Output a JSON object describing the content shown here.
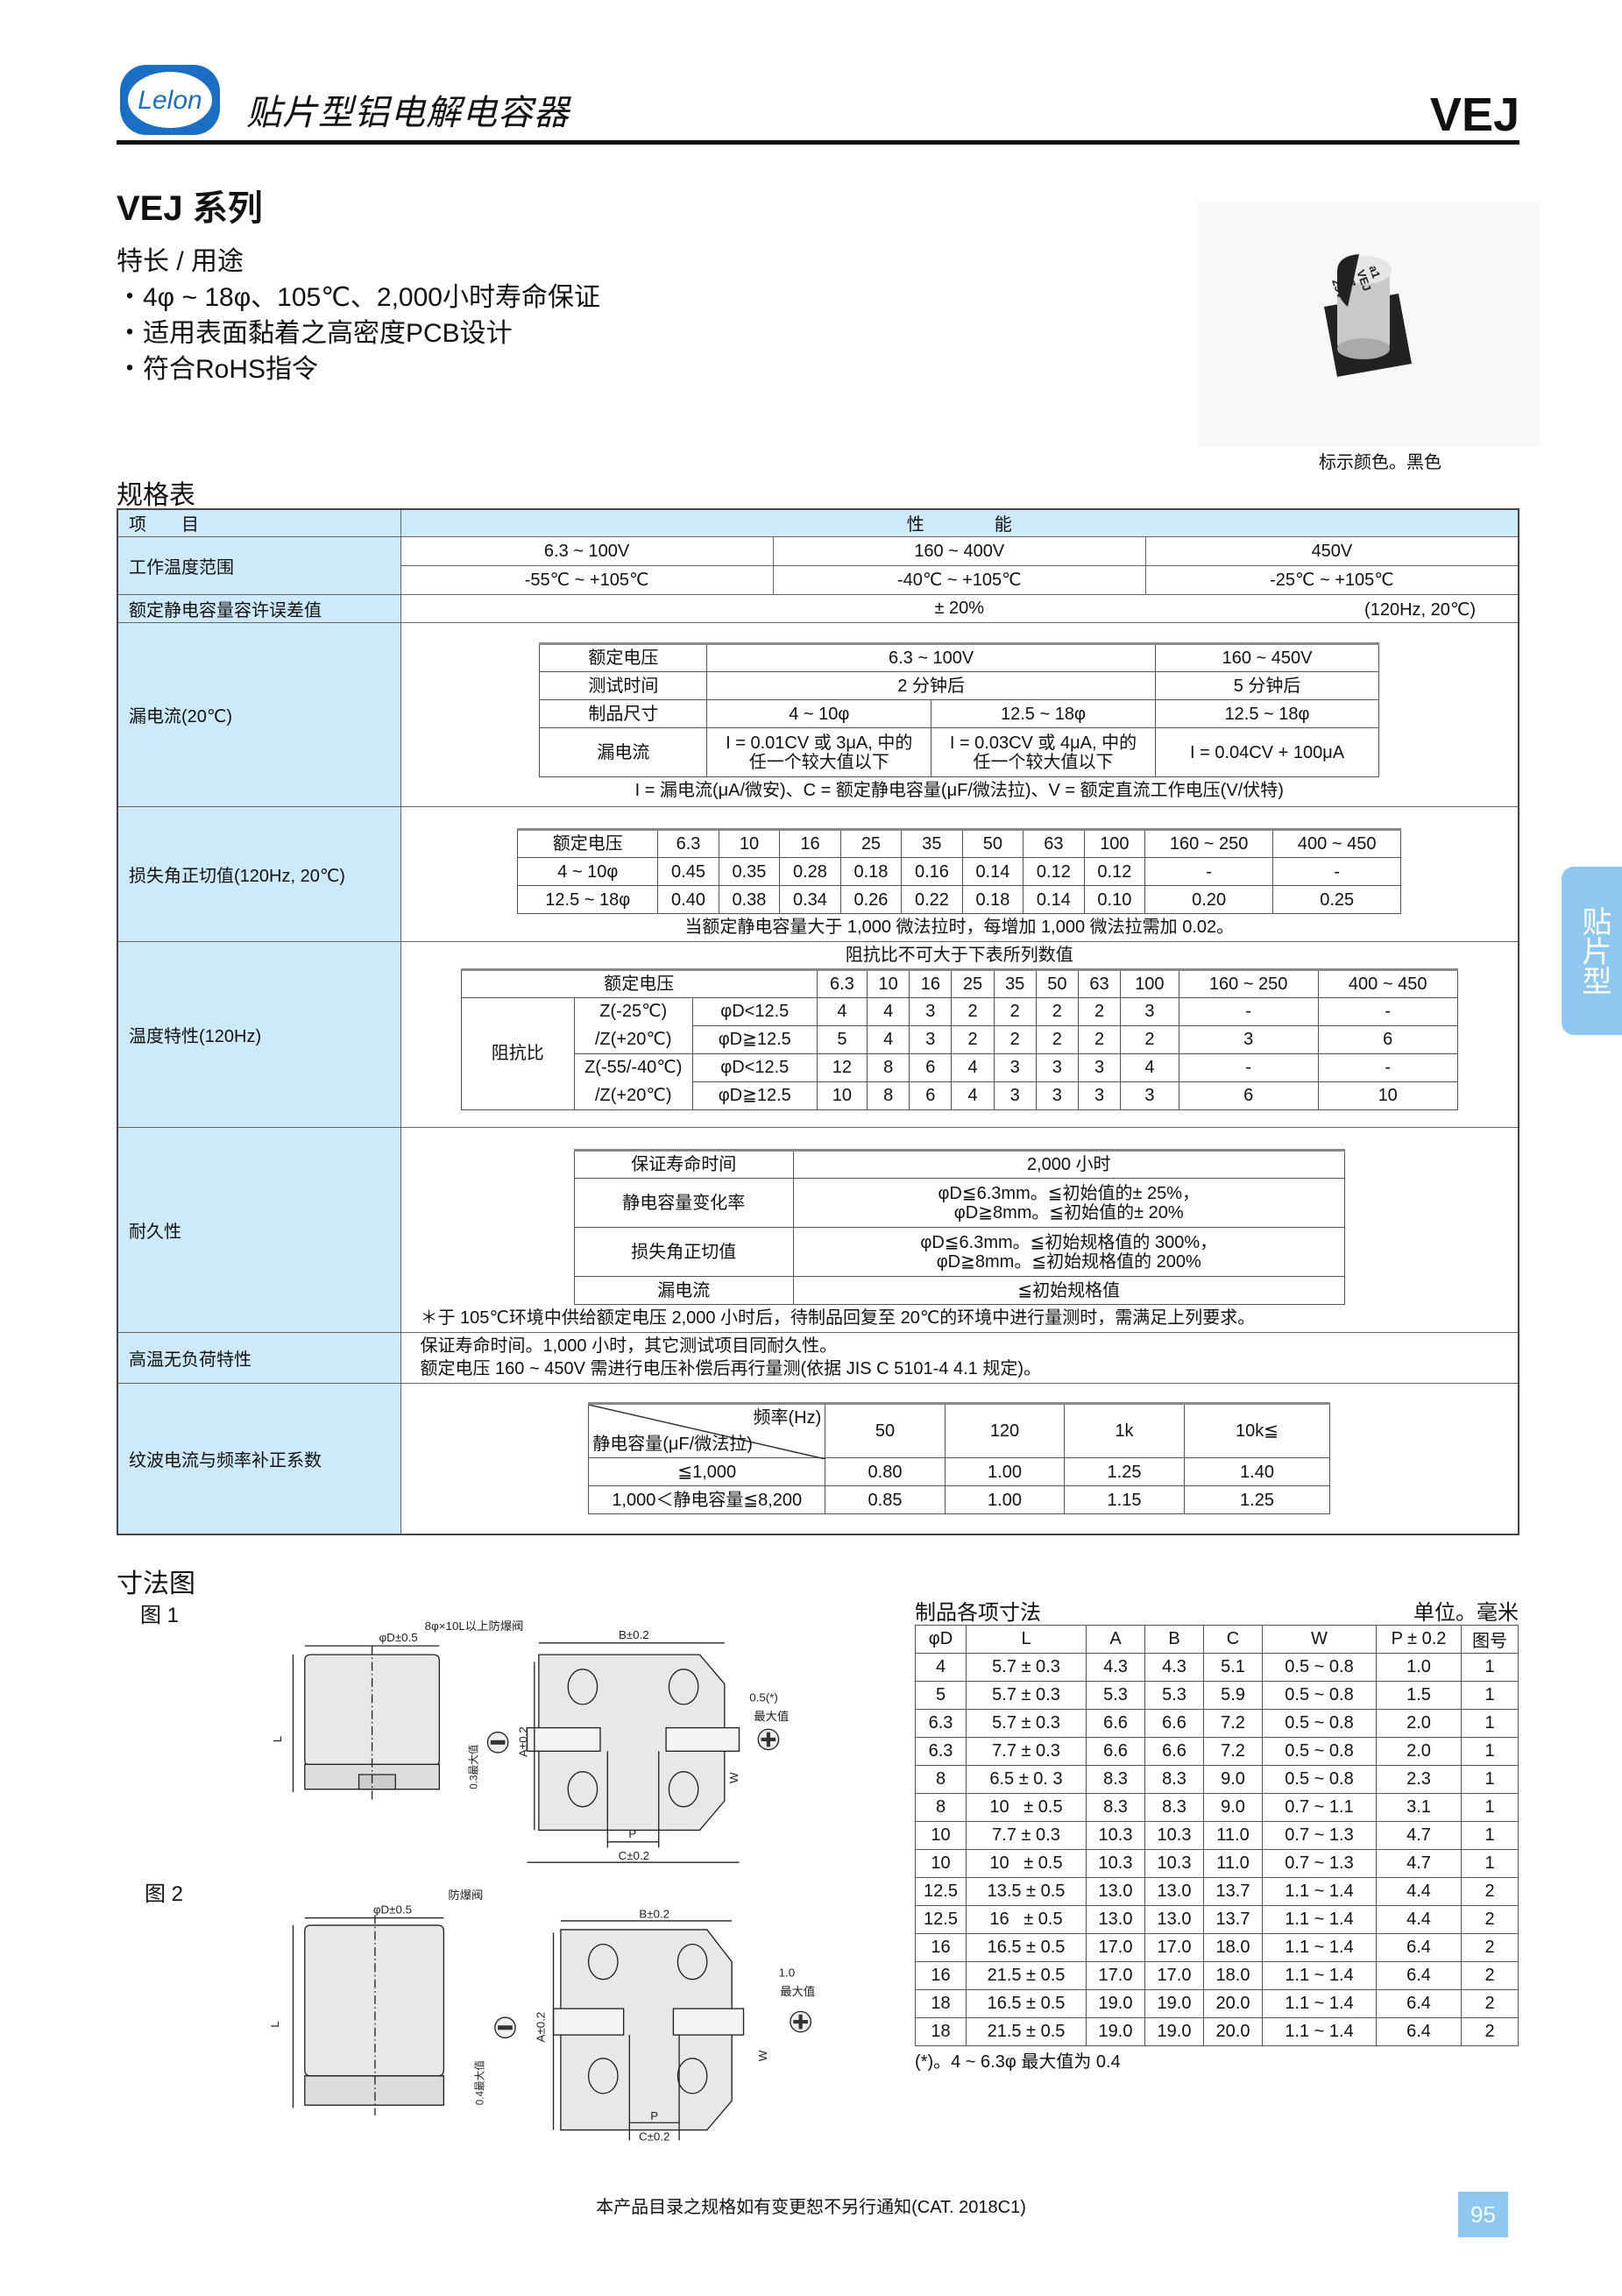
{
  "header": {
    "logo_text": "Lelon",
    "title": "贴片型铝电解电容器",
    "series_code": "VEJ"
  },
  "series_title": "VEJ 系列",
  "features": {
    "heading": "特长 / 用途",
    "items": [
      "・4φ ~ 18φ、105℃、2,000小时寿命保证",
      "・适用表面黏着之高密度PCB设计",
      "・符合RoHS指令"
    ]
  },
  "product_image": {
    "marking": [
      "a1",
      "VEJ",
      "47",
      "25V"
    ],
    "caption": "标示颜色。黑色"
  },
  "spec": {
    "heading": "规格表",
    "col_item": "项　　目",
    "col_perf": "性　　　　能",
    "op_temp": {
      "label": "工作温度范围",
      "voltages": [
        "6.3 ~ 100V",
        "160 ~ 400V",
        "450V"
      ],
      "temps": [
        "-55℃ ~ +105℃",
        "-40℃ ~ +105℃",
        "-25℃ ~ +105℃"
      ]
    },
    "tolerance": {
      "label": "额定静电容量容许误差值",
      "value": "± 20%",
      "cond": "(120Hz, 20℃)"
    },
    "leakage": {
      "label": "漏电流(20℃)",
      "rated_v": "额定电压",
      "v1": "6.3 ~ 100V",
      "v2": "160 ~ 450V",
      "test_time": "测试时间",
      "t1": "2 分钟后",
      "t2": "5 分钟后",
      "size": "制品尺寸",
      "s1": "4 ~ 10φ",
      "s2": "12.5 ~ 18φ",
      "s3": "12.5 ~ 18φ",
      "current": "漏电流",
      "c1a": "I = 0.01CV 或 3μA, 中的",
      "c1b": "任一个较大值以下",
      "c2a": "I = 0.03CV 或 4μA, 中的",
      "c2b": "任一个较大值以下",
      "c3": "I = 0.04CV + 100μA",
      "note": "I = 漏电流(μA/微安)、C = 额定静电容量(μF/微法拉)、V = 额定直流工作电压(V/伏特)"
    },
    "df": {
      "label": "损失角正切值(120Hz, 20℃)",
      "header": [
        "额定电压",
        "6.3",
        "10",
        "16",
        "25",
        "35",
        "50",
        "63",
        "100",
        "160 ~ 250",
        "400 ~ 450"
      ],
      "rows": [
        [
          "4 ~ 10φ",
          "0.45",
          "0.35",
          "0.28",
          "0.18",
          "0.16",
          "0.14",
          "0.12",
          "0.12",
          "-",
          "-"
        ],
        [
          "12.5 ~ 18φ",
          "0.40",
          "0.38",
          "0.34",
          "0.26",
          "0.22",
          "0.18",
          "0.14",
          "0.10",
          "0.20",
          "0.25"
        ]
      ],
      "note": "当额定静电容量大于 1,000 微法拉时，每增加 1,000 微法拉需加 0.02。"
    },
    "temp_char": {
      "label": "温度特性(120Hz)",
      "title": "阻抗比不可大于下表所列数值",
      "rated_v": "额定电压",
      "voltages": [
        "6.3",
        "10",
        "16",
        "25",
        "35",
        "50",
        "63",
        "100",
        "160 ~ 250",
        "400 ~ 450"
      ],
      "ratio_label": "阻抗比",
      "rows": [
        {
          "z": "Z(-25℃)",
          "d": "φD<12.5",
          "values": [
            "4",
            "4",
            "3",
            "2",
            "2",
            "2",
            "2",
            "3",
            "-",
            "-"
          ]
        },
        {
          "z": "/Z(+20℃)",
          "d": "φD≧12.5",
          "values": [
            "5",
            "4",
            "3",
            "2",
            "2",
            "2",
            "2",
            "2",
            "3",
            "6"
          ]
        },
        {
          "z": "Z(-55/-40℃)",
          "d": "φD<12.5",
          "values": [
            "12",
            "8",
            "6",
            "4",
            "3",
            "3",
            "3",
            "4",
            "-",
            "-"
          ]
        },
        {
          "z": "/Z(+20℃)",
          "d": "φD≧12.5",
          "values": [
            "10",
            "8",
            "6",
            "4",
            "3",
            "3",
            "3",
            "3",
            "6",
            "10"
          ]
        }
      ]
    },
    "endurance": {
      "label": "耐久性",
      "life": "保证寿命时间",
      "life_v": "2,000 小时",
      "cap": "静电容量变化率",
      "cap_v1": "φD≦6.3mm。≦初始值的± 25%，",
      "cap_v2": "φD≧8mm。≦初始值的± 20%",
      "df": "损失角正切值",
      "df_v1": "φD≦6.3mm。≦初始规格值的 300%，",
      "df_v2": "φD≧8mm。≦初始规格值的 200%",
      "lc": "漏电流",
      "lc_v": "≦初始规格值",
      "note": "＊于 105℃环境中供给额定电压 2,000 小时后，待制品回复至 20℃的环境中进行量测时，需满足上列要求。"
    },
    "shelf": {
      "label": "高温无负荷特性",
      "line1": "保证寿命时间。1,000 小时，其它测试项目同耐久性。",
      "line2": "额定电压 160 ~ 450V 需进行电压补偿后再行量测(依据 JIS C 5101-4 4.1 规定)。"
    },
    "ripple": {
      "label": "纹波电流与频率补正系数",
      "freq_label": "频率(Hz)",
      "cap_label": "静电容量(μF/微法拉)",
      "freqs": [
        "50",
        "120",
        "1k",
        "10k≦"
      ],
      "rows": [
        [
          "≦1,000",
          "0.80",
          "1.00",
          "1.25",
          "1.40"
        ],
        [
          "1,000＜静电容量≦8,200",
          "0.85",
          "1.00",
          "1.15",
          "1.25"
        ]
      ]
    }
  },
  "dimensions": {
    "heading": "寸法图",
    "fig1": "图 1",
    "fig2": "图 2",
    "labels": {
      "phiD": "φD±0.5",
      "vent1": "8φ×10L以上防爆阀",
      "vent2": "防爆阀",
      "B": "B±0.2",
      "A": "A±0.2",
      "C": "C±0.2",
      "P": "P",
      "W": "W",
      "L": "L",
      "max05": "0.5(*)",
      "max10": "1.0",
      "maxval": "最大值",
      "max03": "0.3最大值",
      "max04": "0.4最大值"
    },
    "table_title": "制品各项寸法",
    "unit": "单位。毫米",
    "columns": [
      "φD",
      "L",
      "A",
      "B",
      "C",
      "W",
      "P ± 0.2",
      "图号"
    ],
    "rows": [
      [
        "4",
        "5.7 ± 0.3",
        "4.3",
        "4.3",
        "5.1",
        "0.5 ~ 0.8",
        "1.0",
        "1"
      ],
      [
        "5",
        "5.7 ± 0.3",
        "5.3",
        "5.3",
        "5.9",
        "0.5 ~ 0.8",
        "1.5",
        "1"
      ],
      [
        "6.3",
        "5.7 ± 0.3",
        "6.6",
        "6.6",
        "7.2",
        "0.5 ~ 0.8",
        "2.0",
        "1"
      ],
      [
        "6.3",
        "7.7 ± 0.3",
        "6.6",
        "6.6",
        "7.2",
        "0.5 ~ 0.8",
        "2.0",
        "1"
      ],
      [
        "8",
        "6.5 ± 0. 3",
        "8.3",
        "8.3",
        "9.0",
        "0.5 ~ 0.8",
        "2.3",
        "1"
      ],
      [
        "8",
        "10   ± 0.5",
        "8.3",
        "8.3",
        "9.0",
        "0.7 ~ 1.1",
        "3.1",
        "1"
      ],
      [
        "10",
        "7.7 ± 0.3",
        "10.3",
        "10.3",
        "11.0",
        "0.7 ~ 1.3",
        "4.7",
        "1"
      ],
      [
        "10",
        "10   ± 0.5",
        "10.3",
        "10.3",
        "11.0",
        "0.7 ~ 1.3",
        "4.7",
        "1"
      ],
      [
        "12.5",
        "13.5 ± 0.5",
        "13.0",
        "13.0",
        "13.7",
        "1.1 ~ 1.4",
        "4.4",
        "2"
      ],
      [
        "12.5",
        "16   ± 0.5",
        "13.0",
        "13.0",
        "13.7",
        "1.1 ~ 1.4",
        "4.4",
        "2"
      ],
      [
        "16",
        "16.5 ± 0.5",
        "17.0",
        "17.0",
        "18.0",
        "1.1 ~ 1.4",
        "6.4",
        "2"
      ],
      [
        "16",
        "21.5 ± 0.5",
        "17.0",
        "17.0",
        "18.0",
        "1.1 ~ 1.4",
        "6.4",
        "2"
      ],
      [
        "18",
        "16.5 ± 0.5",
        "19.0",
        "19.0",
        "20.0",
        "1.1 ~ 1.4",
        "6.4",
        "2"
      ],
      [
        "18",
        "21.5 ± 0.5",
        "19.0",
        "19.0",
        "20.0",
        "1.1 ~ 1.4",
        "6.4",
        "2"
      ]
    ],
    "footnote": "(*)。4 ~ 6.3φ 最大值为 0.4"
  },
  "side_tab": "贴片型",
  "footer": "本产品目录之规格如有变更恕不另行通知(CAT. 2018C1)",
  "page_number": "95",
  "colors": {
    "accent": "#8ec8f0",
    "label_bg": "#cdeafb",
    "logo_blue": "#1a6fc4"
  }
}
